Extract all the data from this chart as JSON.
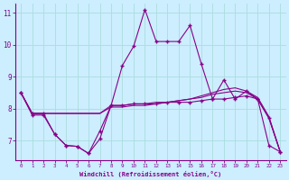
{
  "background_color": "#cceeff",
  "grid_color": "#aadddd",
  "line_color": "#880088",
  "marker": "+",
  "xlabel": "Windchill (Refroidissement éolien,°C)",
  "xlim": [
    -0.5,
    23.5
  ],
  "ylim": [
    6.4,
    11.3
  ],
  "yticks": [
    7,
    8,
    9,
    10,
    11
  ],
  "xticks": [
    0,
    1,
    2,
    3,
    4,
    5,
    6,
    7,
    8,
    9,
    10,
    11,
    12,
    13,
    14,
    15,
    16,
    17,
    18,
    19,
    20,
    21,
    22,
    23
  ],
  "series1": [
    8.5,
    7.8,
    7.8,
    7.2,
    6.85,
    6.82,
    6.6,
    7.3,
    8.1,
    9.35,
    9.95,
    11.1,
    10.1,
    10.1,
    10.1,
    10.6,
    9.4,
    8.3,
    8.9,
    8.3,
    8.55,
    8.3,
    6.85,
    6.65
  ],
  "series2": [
    8.5,
    7.85,
    7.85,
    7.2,
    6.85,
    6.82,
    6.6,
    7.05,
    8.1,
    8.1,
    8.15,
    8.15,
    8.15,
    8.2,
    8.2,
    8.2,
    8.25,
    8.3,
    8.3,
    8.35,
    8.4,
    8.3,
    7.7,
    6.65
  ],
  "series3": [
    8.5,
    7.85,
    7.85,
    7.85,
    7.85,
    7.85,
    7.85,
    7.85,
    8.1,
    8.1,
    8.15,
    8.15,
    8.2,
    8.2,
    8.25,
    8.3,
    8.35,
    8.45,
    8.5,
    8.55,
    8.5,
    8.3,
    7.7,
    6.65
  ],
  "series4": [
    8.5,
    7.85,
    7.85,
    7.85,
    7.85,
    7.85,
    7.85,
    7.85,
    8.05,
    8.05,
    8.1,
    8.1,
    8.15,
    8.2,
    8.25,
    8.3,
    8.4,
    8.5,
    8.6,
    8.65,
    8.55,
    8.35,
    7.75,
    6.65
  ]
}
